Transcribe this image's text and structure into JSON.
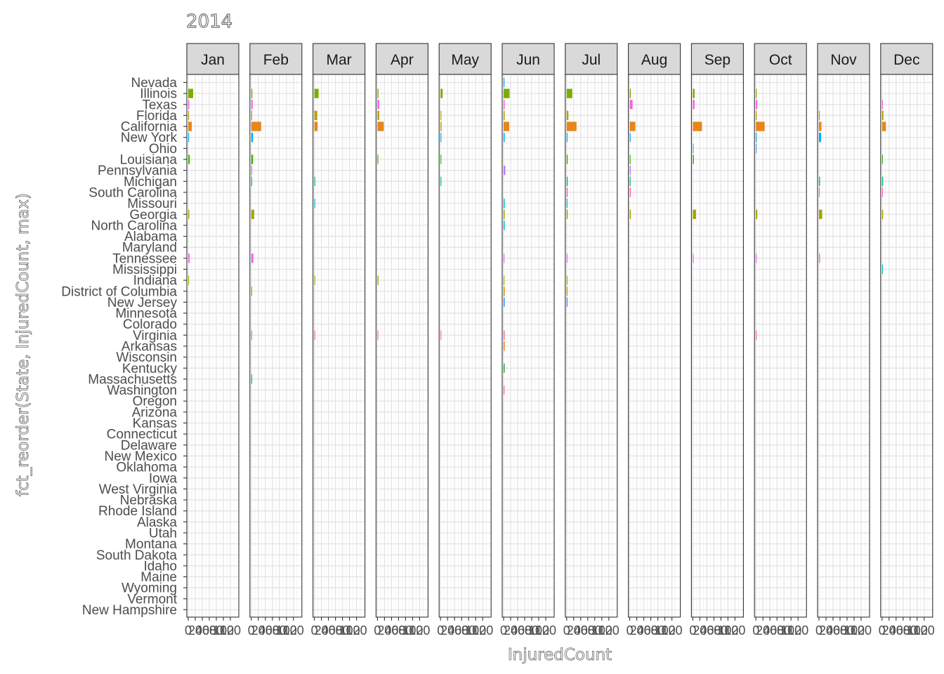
{
  "chart_data": {
    "type": "bar",
    "orientation": "horizontal",
    "title": "2014",
    "xlabel": "InjuredCount",
    "ylabel": "fct_reorder(State, InjuredCount, max)",
    "xlim": [
      0,
      140
    ],
    "x_ticks": [
      "0",
      "20",
      "40",
      "60",
      "80",
      "100",
      "120"
    ],
    "grid": true,
    "legend": "none",
    "panels": [
      "Jan",
      "Feb",
      "Mar",
      "Apr",
      "May",
      "Jun",
      "Jul",
      "Aug",
      "Sep",
      "Oct",
      "Nov",
      "Dec"
    ],
    "states": [
      "Nevada",
      "Illinois",
      "Texas",
      "Florida",
      "California",
      "New York",
      "Ohio",
      "Louisiana",
      "Pennsylvania",
      "Michigan",
      "South Carolina",
      "Missouri",
      "Georgia",
      "North Carolina",
      "Alabama",
      "Maryland",
      "Tennessee",
      "Mississippi",
      "Indiana",
      "District of Columbia",
      "New Jersey",
      "Minnesota",
      "Colorado",
      "Virginia",
      "Arkansas",
      "Wisconsin",
      "Kentucky",
      "Massachusetts",
      "Washington",
      "Oregon",
      "Arizona",
      "Kansas",
      "Connecticut",
      "Delaware",
      "New Mexico",
      "Oklahoma",
      "Iowa",
      "West Virginia",
      "Nebraska",
      "Rhode Island",
      "Alaska",
      "Utah",
      "Montana",
      "South Dakota",
      "Idaho",
      "Maine",
      "Wyoming",
      "Vermont",
      "New Hampshire"
    ],
    "state_colors": {
      "Nevada": "#00a6ff",
      "Illinois": "#7cae00",
      "Texas": "#f564e3",
      "Florida": "#b79f00",
      "California": "#e7861b",
      "New York": "#00a9ff",
      "Ohio": "#619cff",
      "Louisiana": "#39b600",
      "Pennsylvania": "#c77cff",
      "Michigan": "#00bf7d",
      "South Carolina": "#ff61c3",
      "Missouri": "#00bcd8",
      "Georgia": "#a3a500",
      "North Carolina": "#00b0f6",
      "Tennessee": "#e76bf3",
      "Mississippi": "#00c0b8",
      "Indiana": "#8fb800",
      "District of Columbia": "#d39200",
      "New Jersey": "#3a8dff",
      "Minnesota": "#00c1a3",
      "Virginia": "#ff67a4",
      "Arkansas": "#e8800e",
      "Kentucky": "#13b541",
      "Massachusetts": "#00c08b",
      "Washington": "#f55fa0"
    },
    "values": {
      "Jan": {
        "Illinois": 14,
        "Texas": 3,
        "Florida": 2,
        "California": 10,
        "New York": 2,
        "Louisiana": 4,
        "Georgia": 3,
        "Tennessee": 4,
        "Indiana": 1
      },
      "Feb": {
        "Illinois": 3,
        "Texas": 4,
        "Florida": 2,
        "California": 28,
        "New York": 5,
        "Louisiana": 5,
        "Pennsylvania": 2,
        "Michigan": 1,
        "Georgia": 8,
        "Tennessee": 6,
        "District of Columbia": 1,
        "Virginia": 1,
        "Massachusetts": 1
      },
      "Mar": {
        "Illinois": 12,
        "Florida": 8,
        "California": 9,
        "Michigan": 1,
        "Missouri": 1,
        "Indiana": 1,
        "Virginia": 1
      },
      "Apr": {
        "Illinois": 3,
        "Texas": 5,
        "Florida": 5,
        "California": 18,
        "Louisiana": 2,
        "Indiana": 3,
        "Virginia": 1
      },
      "May": {
        "Illinois": 6,
        "Florida": 2,
        "California": 3,
        "New York": 1,
        "Louisiana": 1,
        "Michigan": 1,
        "Virginia": 2
      },
      "Jun": {
        "Nevada": 1,
        "Illinois": 17,
        "Texas": 3,
        "Florida": 3,
        "California": 16,
        "New York": 3,
        "Pennsylvania": 5,
        "Missouri": 3,
        "Georgia": 3,
        "North Carolina": 3,
        "Tennessee": 2,
        "Indiana": 2,
        "District of Columbia": 3,
        "New Jersey": 3,
        "Virginia": 3,
        "Arkansas": 3,
        "Kentucky": 3,
        "Washington": 2
      },
      "Jul": {
        "Illinois": 16,
        "Florida": 5,
        "California": 28,
        "New York": 2,
        "Louisiana": 3,
        "Michigan": 3,
        "South Carolina": 3,
        "Missouri": 2,
        "Georgia": 3,
        "Tennessee": 2,
        "Indiana": 2,
        "District of Columbia": 2,
        "New Jersey": 2
      },
      "Aug": {
        "Illinois": 3,
        "Texas": 8,
        "California": 16,
        "New York": 1,
        "Louisiana": 1,
        "Pennsylvania": 3,
        "Michigan": 2,
        "South Carolina": 3,
        "Georgia": 3
      },
      "Sep": {
        "Illinois": 5,
        "Texas": 5,
        "California": 26,
        "Ohio": 2,
        "Louisiana": 3,
        "Georgia": 9,
        "Tennessee": 2
      },
      "Oct": {
        "Illinois": 2,
        "Texas": 4,
        "Florida": 2,
        "California": 25,
        "New York": 2,
        "Ohio": 2,
        "Georgia": 4,
        "Tennessee": 2,
        "Virginia": 1
      },
      "Nov": {
        "Florida": 2,
        "California": 7,
        "New York": 6,
        "Michigan": 3,
        "South Carolina": 1,
        "Georgia": 9,
        "Tennessee": 3
      },
      "Dec": {
        "Texas": 2,
        "Florida": 4,
        "California": 11,
        "Louisiana": 2,
        "Michigan": 3,
        "South Carolina": 1,
        "Georgia": 3,
        "Mississippi": 1
      }
    }
  }
}
